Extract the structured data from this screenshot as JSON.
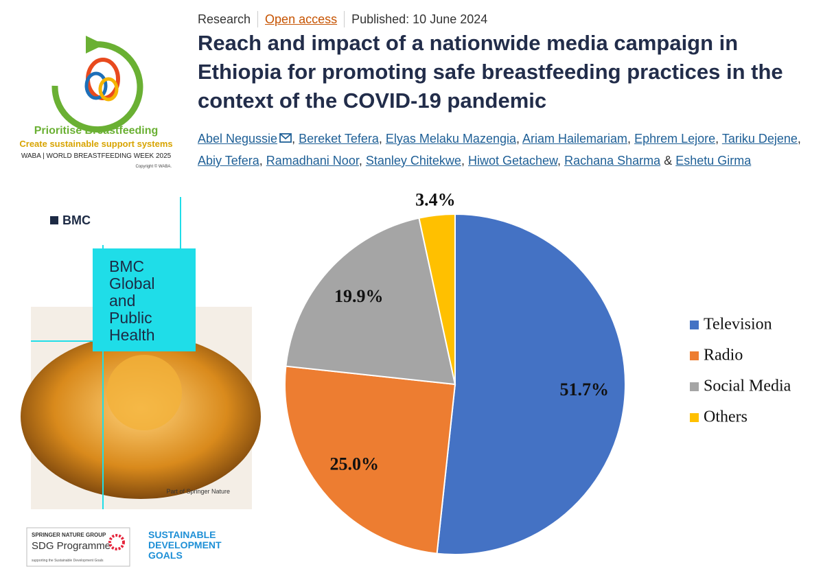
{
  "logo": {
    "tagline": "Prioritise Breastfeeding",
    "subtitle": "Create sustainable support systems",
    "event": "WABA | WORLD BREASTFEEDING WEEK 2025",
    "copyright": "Copyright © WABA."
  },
  "article": {
    "type": "Research",
    "access": "Open access",
    "published": "Published: 10 June 2024",
    "title": "Reach and impact of a nationwide media campaign in Ethiopia for promoting safe breastfeeding practices in the context of the COVID-19 pandemic",
    "authors": [
      "Abel Negussie",
      "Bereket Tefera",
      "Elyas Melaku Mazengia",
      "Ariam Hailemariam",
      "Ephrem Lejore",
      "Tariku Dejene",
      "Abiy Tefera",
      "Ramadhani Noor",
      "Stanley Chitekwe",
      "Hiwot Getachew",
      "Rachana Sharma",
      "Eshetu Girma"
    ],
    "separator": ",",
    "conjunction": "&"
  },
  "journal": {
    "publisher": "BMC",
    "name": "BMC Global and Public Health",
    "footer": "Part of Springer Nature"
  },
  "sponsors": {
    "group": "SPRINGER NATURE GROUP",
    "programme": "SDG Programme",
    "note": "supporting the Sustainable Development Goals",
    "sdg": "SUSTAINABLE DEVELOPMENT GOALS"
  },
  "chart_data": {
    "type": "pie",
    "categories": [
      "Television",
      "Radio",
      "Social Media",
      "Others"
    ],
    "values": [
      51.7,
      25.0,
      19.9,
      3.4
    ],
    "value_labels": [
      "51.7%",
      "25.0%",
      "19.9%",
      "3.4%"
    ],
    "colors": [
      "#4472c4",
      "#ed7d31",
      "#a5a5a5",
      "#ffc000"
    ],
    "legend": "right"
  }
}
